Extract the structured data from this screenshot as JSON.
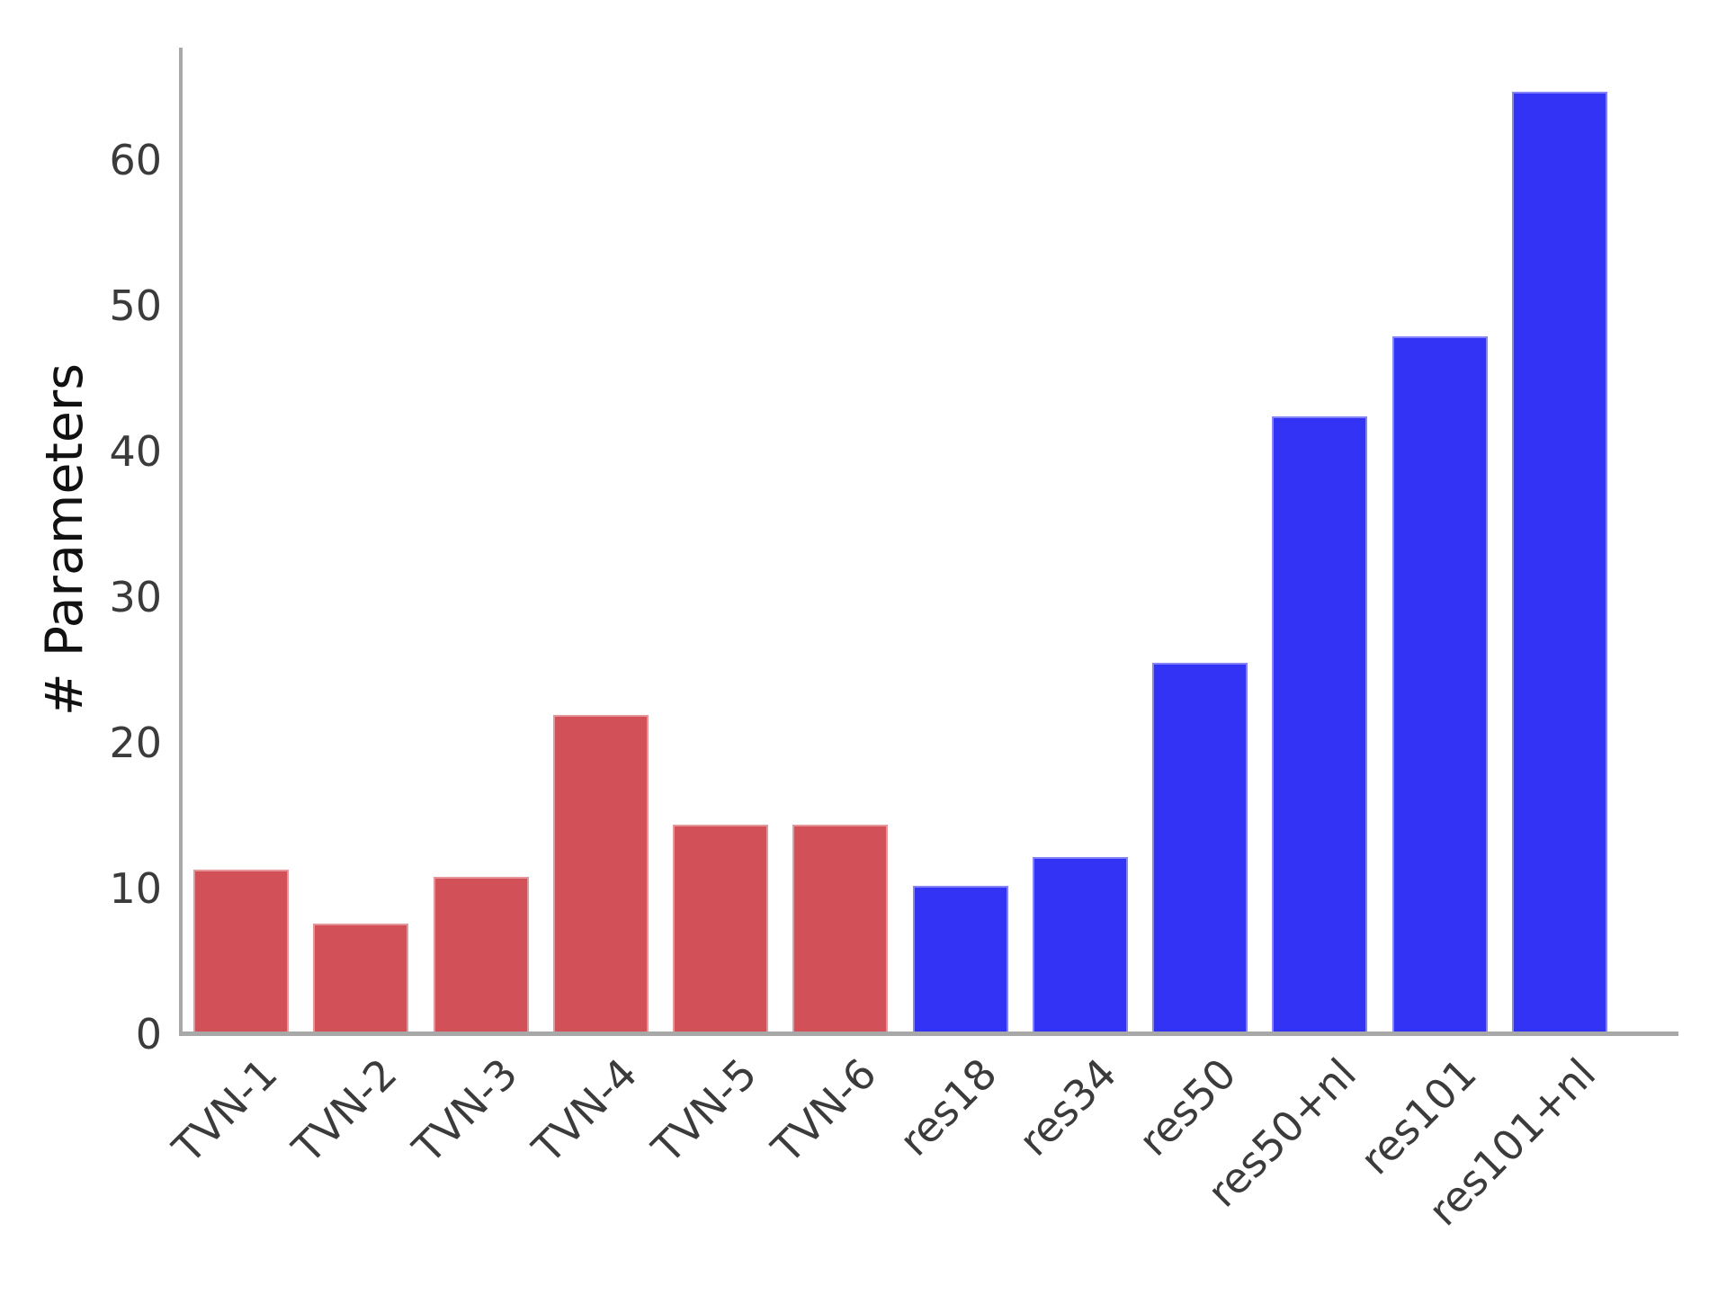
{
  "figure": {
    "background": "#ffffff",
    "axis_color": "#a8a8a8",
    "tick_label_color": "#3b3b3b",
    "axis_label_color": "#111111"
  },
  "chart_data": {
    "type": "bar",
    "title": "",
    "xlabel": "",
    "ylabel": "# Parameters",
    "categories": [
      "TVN-1",
      "TVN-2",
      "TVN-3",
      "TVN-4",
      "TVN-5",
      "TVN-6",
      "res18",
      "res34",
      "res50",
      "res50+nl",
      "res101",
      "res101+nl"
    ],
    "values": [
      11.1,
      7.4,
      10.6,
      21.7,
      14.2,
      14.2,
      10.0,
      12.0,
      25.3,
      42.2,
      47.7,
      64.5
    ],
    "bar_colors_hex": [
      "#d25158",
      "#d25158",
      "#d25158",
      "#d25158",
      "#d25158",
      "#d25158",
      "#3233f4",
      "#3233f4",
      "#3233f4",
      "#3233f4",
      "#3233f4",
      "#3233f4"
    ],
    "group_palette": {
      "tvn_red": "#d25158",
      "resnet_blue": "#3233f4"
    },
    "y_ticks": [
      0,
      10,
      20,
      30,
      40,
      50,
      60
    ],
    "ylim": [
      0,
      67.5
    ],
    "grid": false,
    "legend": "none",
    "x_tick_rotation_deg": 45
  }
}
